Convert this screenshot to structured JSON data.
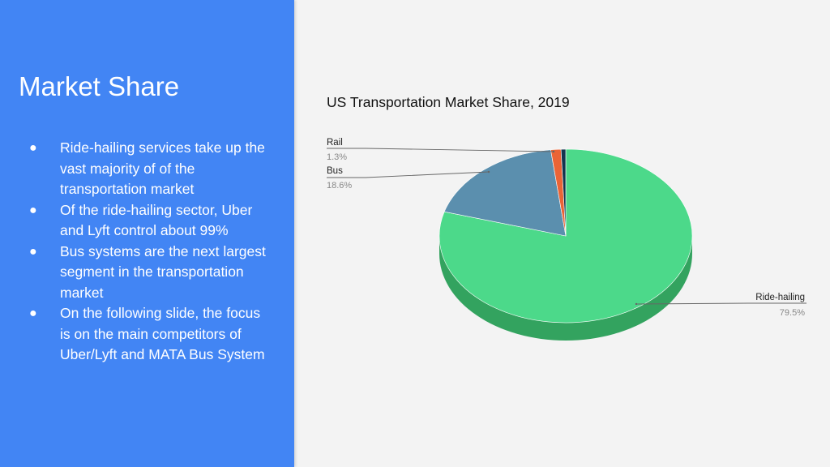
{
  "slide": {
    "title": "Market Share",
    "bullets": [
      "Ride-hailing services take up the vast majority of of the transportation market",
      "Of the ride-hailing sector, Uber and Lyft control about 99%",
      "Bus systems are the next largest segment in the transportation market",
      "On the following slide, the focus is on the main competitors of Uber/Lyft and MATA Bus System"
    ],
    "bullet_glyph": "●"
  },
  "colors": {
    "panel": "#4285f4",
    "background": "#f3f3f3",
    "ride_hailing": "#4cd98a",
    "ride_hailing_side": "#33a35f",
    "bus": "#5b8fae",
    "rail": "#ea6436",
    "other": "#13354f"
  },
  "chart_data": {
    "type": "pie",
    "title": "US Transportation Market Share, 2019",
    "three_d": true,
    "categories": [
      "Ride-hailing",
      "Bus",
      "Rail",
      ""
    ],
    "values": [
      79.5,
      18.6,
      1.3,
      0.6
    ],
    "labels": [
      {
        "name": "Ride-hailing",
        "value": "79.5%"
      },
      {
        "name": "Bus",
        "value": "18.6%"
      },
      {
        "name": "Rail",
        "value": "1.3%"
      }
    ],
    "colors": [
      "#4cd98a",
      "#5b8fae",
      "#ea6436",
      "#13354f"
    ]
  }
}
